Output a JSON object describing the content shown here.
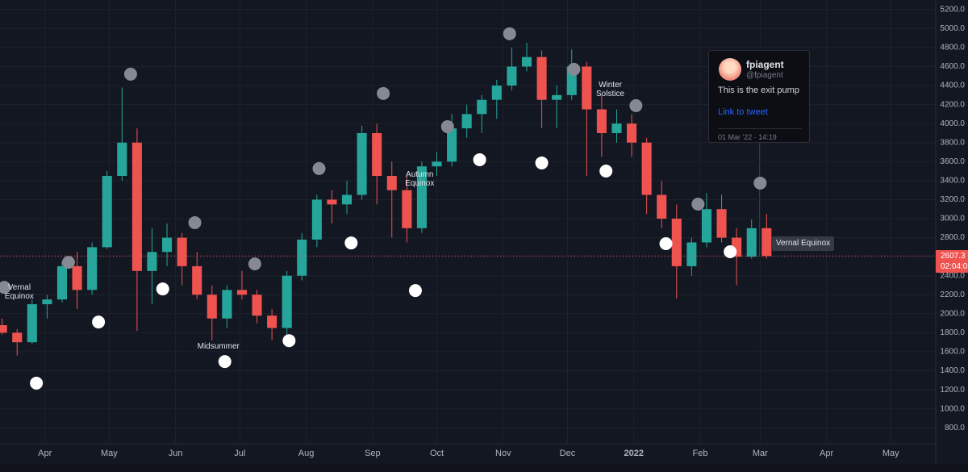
{
  "chart_data": {
    "type": "candlestick",
    "up_color": "#26a69a",
    "down_color": "#ef5350",
    "grid": true,
    "xlim": [
      -21,
      416
    ],
    "ylim": [
      590,
      5300
    ],
    "xticks": [
      {
        "value": 0,
        "label": "Apr"
      },
      {
        "value": 30,
        "label": "May"
      },
      {
        "value": 61,
        "label": "Jun"
      },
      {
        "value": 91,
        "label": "Jul"
      },
      {
        "value": 122,
        "label": "Aug"
      },
      {
        "value": 153,
        "label": "Sep"
      },
      {
        "value": 183,
        "label": "Oct"
      },
      {
        "value": 214,
        "label": "Nov"
      },
      {
        "value": 244,
        "label": "Dec"
      },
      {
        "value": 275,
        "label": "2022"
      },
      {
        "value": 306,
        "label": "Feb"
      },
      {
        "value": 334,
        "label": "Mar"
      },
      {
        "value": 365,
        "label": "Apr"
      },
      {
        "value": 395,
        "label": "May"
      }
    ],
    "yticks": [
      {
        "value": 800,
        "label": "800.0"
      },
      {
        "value": 1000,
        "label": "1000.0"
      },
      {
        "value": 1200,
        "label": "1200.0"
      },
      {
        "value": 1400,
        "label": "1400.0"
      },
      {
        "value": 1600,
        "label": "1600.0"
      },
      {
        "value": 1800,
        "label": "1800.0"
      },
      {
        "value": 2000,
        "label": "2000.0"
      },
      {
        "value": 2200,
        "label": "2200.0"
      },
      {
        "value": 2400,
        "label": "2400.0"
      },
      {
        "value": 2600,
        "label": "2600.0"
      },
      {
        "value": 2800,
        "label": "2800.0"
      },
      {
        "value": 3000,
        "label": "3000.0"
      },
      {
        "value": 3200,
        "label": "3200.0"
      },
      {
        "value": 3400,
        "label": "3400.0"
      },
      {
        "value": 3600,
        "label": "3600.0"
      },
      {
        "value": 3800,
        "label": "3800.0"
      },
      {
        "value": 4000,
        "label": "4000.0"
      },
      {
        "value": 4200,
        "label": "4200.0"
      },
      {
        "value": 4400,
        "label": "4400.0"
      },
      {
        "value": 4600,
        "label": "4600.0"
      },
      {
        "value": 4800,
        "label": "4800.0"
      },
      {
        "value": 5000,
        "label": "5000.0"
      },
      {
        "value": 5200,
        "label": "5200.0"
      }
    ],
    "x": [
      -20,
      -13,
      -6,
      1,
      8,
      15,
      22,
      29,
      36,
      43,
      50,
      57,
      64,
      71,
      78,
      85,
      92,
      99,
      106,
      113,
      120,
      127,
      134,
      141,
      148,
      155,
      162,
      169,
      176,
      183,
      190,
      197,
      204,
      211,
      218,
      225,
      232,
      239,
      246,
      253,
      260,
      267,
      274,
      281,
      288,
      295,
      302,
      309,
      316,
      323,
      330,
      337
    ],
    "open": [
      1880,
      1800,
      1700,
      2100,
      2150,
      2500,
      2250,
      2700,
      3450,
      3800,
      2450,
      2650,
      2800,
      2500,
      2200,
      1950,
      2250,
      2200,
      1980,
      1850,
      2400,
      2780,
      3200,
      3150,
      3250,
      3900,
      3450,
      3300,
      2900,
      3550,
      3600,
      3950,
      4100,
      4250,
      4400,
      4600,
      4700,
      4250,
      4300,
      4600,
      4150,
      3900,
      4000,
      3800,
      3250,
      3000,
      2500,
      2750,
      3100,
      2800,
      2600,
      2900
    ],
    "high": [
      1950,
      1840,
      2150,
      2200,
      2550,
      2650,
      2750,
      3500,
      4380,
      3950,
      2900,
      2950,
      2850,
      2650,
      2300,
      2300,
      2450,
      2250,
      2050,
      2450,
      2850,
      3250,
      3300,
      3400,
      3980,
      4000,
      3600,
      3450,
      3600,
      3700,
      4100,
      4200,
      4300,
      4460,
      4800,
      4850,
      4770,
      4400,
      4780,
      4650,
      4300,
      4150,
      4100,
      3850,
      3400,
      3150,
      2800,
      3270,
      3250,
      2900,
      2990,
      3050
    ],
    "low": [
      1780,
      1560,
      1680,
      1950,
      2120,
      2050,
      2200,
      2680,
      3400,
      1820,
      2100,
      2500,
      2300,
      2150,
      1720,
      1850,
      2150,
      1900,
      1720,
      1780,
      2350,
      2700,
      2950,
      3050,
      3200,
      3150,
      2800,
      2750,
      2850,
      3450,
      3550,
      3850,
      3900,
      4050,
      4350,
      4550,
      3950,
      3950,
      4250,
      3450,
      3650,
      3800,
      3650,
      3050,
      2900,
      2160,
      2400,
      2700,
      2750,
      2300,
      2580,
      2580
    ],
    "close": [
      1800,
      1700,
      2100,
      2150,
      2500,
      2250,
      2700,
      3450,
      3800,
      2450,
      2650,
      2800,
      2500,
      2200,
      1950,
      2250,
      2200,
      1980,
      1850,
      2400,
      2780,
      3200,
      3150,
      3250,
      3900,
      3450,
      3300,
      2900,
      3550,
      3600,
      3950,
      4100,
      4250,
      4400,
      4600,
      4700,
      4250,
      4300,
      4600,
      4150,
      3900,
      4000,
      3800,
      3250,
      3000,
      2500,
      2750,
      3100,
      2800,
      2600,
      2900,
      2607.3
    ],
    "full_moons": {
      "color": "#ffffff",
      "x": [
        -4,
        25,
        55,
        84,
        114,
        143,
        173,
        203,
        232,
        262,
        290,
        320
      ],
      "y": [
        1270,
        1913,
        2261,
        1497,
        1717,
        2745,
        2244,
        3620,
        3586,
        3501,
        2737,
        2652
      ]
    },
    "new_moons": {
      "color": "#868993",
      "x": [
        -19,
        11,
        40,
        70,
        98,
        128,
        158,
        188,
        217,
        247,
        276,
        305,
        334
      ],
      "y": [
        2278,
        2541,
        4520,
        2958,
        2524,
        3527,
        4317,
        3968,
        4945,
        4571,
        4189,
        3153,
        3374
      ]
    },
    "events": [
      {
        "label": "Vernal Equinox",
        "x": -12,
        "y": 2230
      },
      {
        "label": "Midsummer",
        "x": 81,
        "y": 1610
      },
      {
        "label": "Autumn Equinox",
        "x": 175,
        "y": 3420
      },
      {
        "label": "Winter Solstice",
        "x": 264,
        "y": 4360
      }
    ],
    "hover_label": "Vernal Equinox",
    "countdown": "02:04:0",
    "tooltip": {
      "name": "fpiagent",
      "handle": "@fpiagent",
      "text": "This is the exit pump",
      "link": "Link to tweet",
      "time": "01 Mar '22 · 14:19"
    }
  }
}
